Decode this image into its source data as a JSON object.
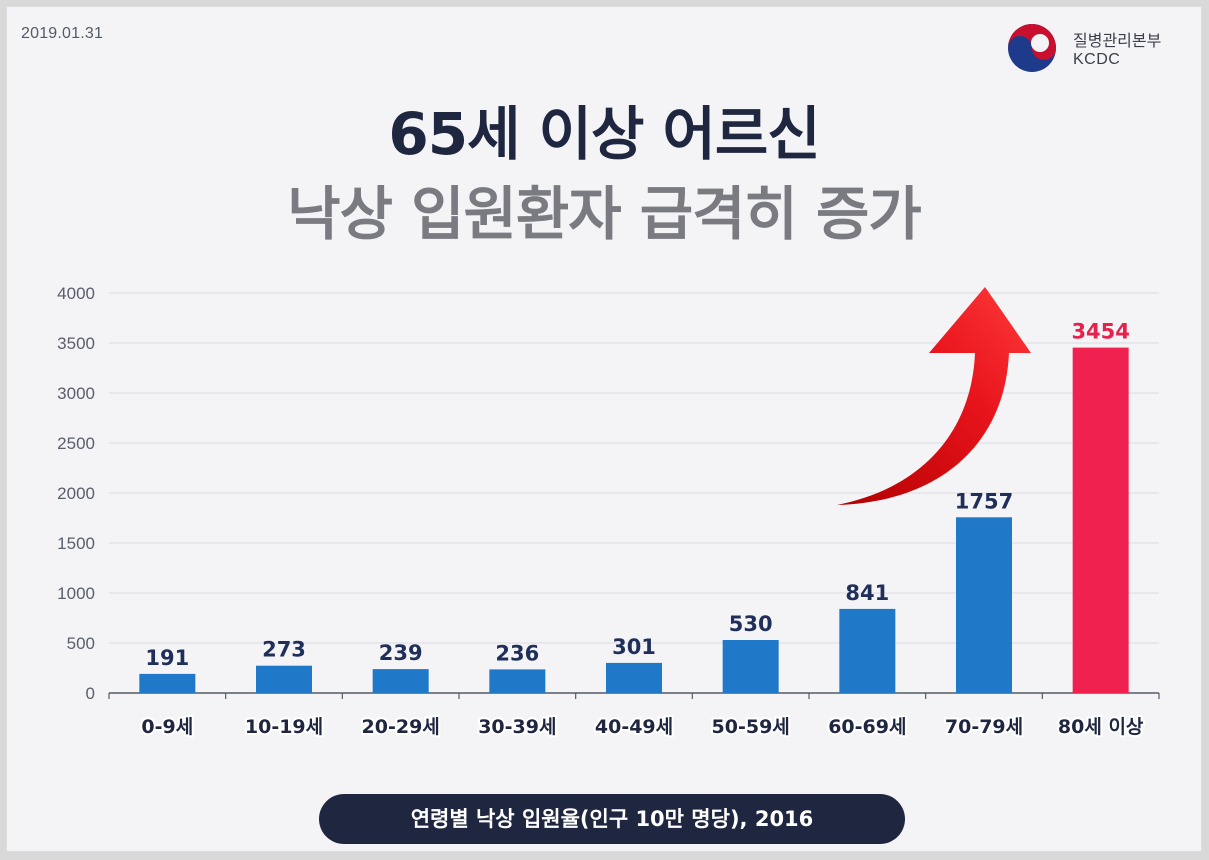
{
  "date": "2019.01.31",
  "logo": {
    "name_kr": "질병관리본부",
    "name_en": "KCDC",
    "colors": {
      "red": "#c8102e",
      "blue": "#1e3a8a"
    }
  },
  "title": {
    "line1": "65세 이상 어르신",
    "line2": "낙상 입원환자 급격히 증가"
  },
  "caption": "연령별 낙상 입원율(인구 10만 명당), 2016",
  "colors": {
    "bar": "#1f78c8",
    "highlight_bar": "#f0214f",
    "highlight_label": "#e8214c",
    "value_label": "#1f2f5a",
    "arrow": "#e8141c",
    "grid": "#dddde3"
  },
  "chart_data": {
    "type": "bar",
    "categories": [
      "0-9세",
      "10-19세",
      "20-29세",
      "30-39세",
      "40-49세",
      "50-59세",
      "60-69세",
      "70-79세",
      "80세 이상"
    ],
    "values": [
      191,
      273,
      239,
      236,
      301,
      530,
      841,
      1757,
      3454
    ],
    "highlight_index": 8,
    "ylim": [
      0,
      4000
    ],
    "yticks": [
      0,
      500,
      1000,
      1500,
      2000,
      2500,
      3000,
      3500,
      4000
    ],
    "grid": true,
    "annotation": "red upward arrow"
  }
}
